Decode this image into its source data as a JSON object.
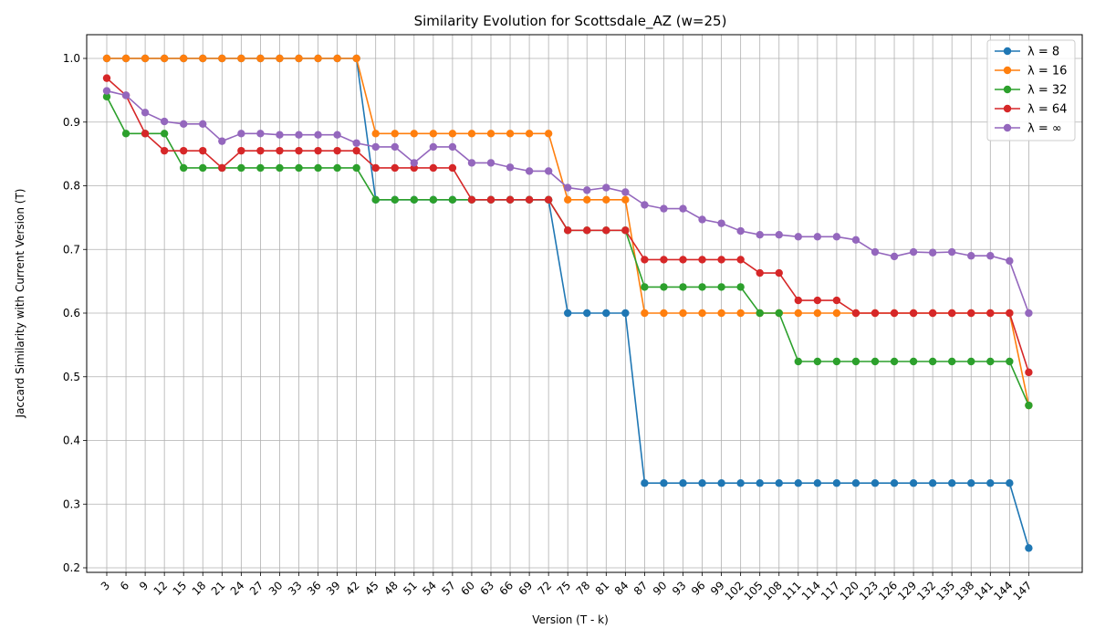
{
  "chart_data": {
    "type": "line",
    "title": "Similarity Evolution for Scottsdale_AZ (w=25)",
    "xlabel": "Version (T - k)",
    "ylabel": "Jaccard Similarity with Current Version (T)",
    "ylim": [
      0.2,
      1.0
    ],
    "yticks": [
      "0.2",
      "0.3",
      "0.4",
      "0.5",
      "0.6",
      "0.7",
      "0.8",
      "0.9",
      "1.0"
    ],
    "grid": true,
    "legend_position": "top-right",
    "categories": [
      3,
      6,
      9,
      12,
      15,
      18,
      21,
      24,
      27,
      30,
      33,
      36,
      39,
      42,
      45,
      48,
      51,
      54,
      57,
      60,
      63,
      66,
      69,
      72,
      75,
      78,
      81,
      84,
      87,
      90,
      93,
      96,
      99,
      102,
      105,
      108,
      111,
      114,
      117,
      120,
      123,
      126,
      129,
      132,
      135,
      138,
      141,
      144,
      147
    ],
    "series": [
      {
        "name": "λ = 8",
        "color": "#1f77b4",
        "values": [
          1.0,
          1.0,
          1.0,
          1.0,
          1.0,
          1.0,
          1.0,
          1.0,
          1.0,
          1.0,
          1.0,
          1.0,
          1.0,
          1.0,
          0.778,
          0.778,
          0.778,
          0.778,
          0.778,
          0.778,
          0.778,
          0.778,
          0.778,
          0.778,
          0.6,
          0.6,
          0.6,
          0.6,
          0.333,
          0.333,
          0.333,
          0.333,
          0.333,
          0.333,
          0.333,
          0.333,
          0.333,
          0.333,
          0.333,
          0.333,
          0.333,
          0.333,
          0.333,
          0.333,
          0.333,
          0.333,
          0.333,
          0.333,
          0.231
        ]
      },
      {
        "name": "λ = 16",
        "color": "#ff7f0e",
        "values": [
          1.0,
          1.0,
          1.0,
          1.0,
          1.0,
          1.0,
          1.0,
          1.0,
          1.0,
          1.0,
          1.0,
          1.0,
          1.0,
          1.0,
          0.882,
          0.882,
          0.882,
          0.882,
          0.882,
          0.882,
          0.882,
          0.882,
          0.882,
          0.882,
          0.778,
          0.778,
          0.778,
          0.778,
          0.6,
          0.6,
          0.6,
          0.6,
          0.6,
          0.6,
          0.6,
          0.6,
          0.6,
          0.6,
          0.6,
          0.6,
          0.6,
          0.6,
          0.6,
          0.6,
          0.6,
          0.6,
          0.6,
          0.6,
          0.455
        ]
      },
      {
        "name": "λ = 32",
        "color": "#2ca02c",
        "values": [
          0.94,
          0.882,
          0.882,
          0.882,
          0.828,
          0.828,
          0.828,
          0.828,
          0.828,
          0.828,
          0.828,
          0.828,
          0.828,
          0.828,
          0.778,
          0.778,
          0.778,
          0.778,
          0.778,
          0.778,
          0.778,
          0.778,
          0.778,
          0.778,
          0.73,
          0.73,
          0.73,
          0.73,
          0.641,
          0.641,
          0.641,
          0.641,
          0.641,
          0.641,
          0.6,
          0.6,
          0.524,
          0.524,
          0.524,
          0.524,
          0.524,
          0.524,
          0.524,
          0.524,
          0.524,
          0.524,
          0.524,
          0.524,
          0.455
        ]
      },
      {
        "name": "λ = 64",
        "color": "#d62728",
        "values": [
          0.969,
          0.942,
          0.882,
          0.855,
          0.855,
          0.855,
          0.828,
          0.855,
          0.855,
          0.855,
          0.855,
          0.855,
          0.855,
          0.855,
          0.828,
          0.828,
          0.828,
          0.828,
          0.828,
          0.778,
          0.778,
          0.778,
          0.778,
          0.778,
          0.73,
          0.73,
          0.73,
          0.73,
          0.684,
          0.684,
          0.684,
          0.684,
          0.684,
          0.684,
          0.663,
          0.663,
          0.62,
          0.62,
          0.62,
          0.6,
          0.6,
          0.6,
          0.6,
          0.6,
          0.6,
          0.6,
          0.6,
          0.6,
          0.507
        ]
      },
      {
        "name": "λ = ∞",
        "color": "#9467bd",
        "values": [
          0.949,
          0.942,
          0.915,
          0.901,
          0.897,
          0.897,
          0.87,
          0.882,
          0.882,
          0.88,
          0.88,
          0.88,
          0.88,
          0.867,
          0.861,
          0.861,
          0.836,
          0.861,
          0.861,
          0.836,
          0.836,
          0.829,
          0.823,
          0.823,
          0.797,
          0.793,
          0.797,
          0.79,
          0.77,
          0.764,
          0.764,
          0.747,
          0.741,
          0.729,
          0.723,
          0.723,
          0.72,
          0.72,
          0.72,
          0.715,
          0.696,
          0.689,
          0.696,
          0.695,
          0.696,
          0.69,
          0.69,
          0.682,
          0.6
        ]
      }
    ]
  }
}
